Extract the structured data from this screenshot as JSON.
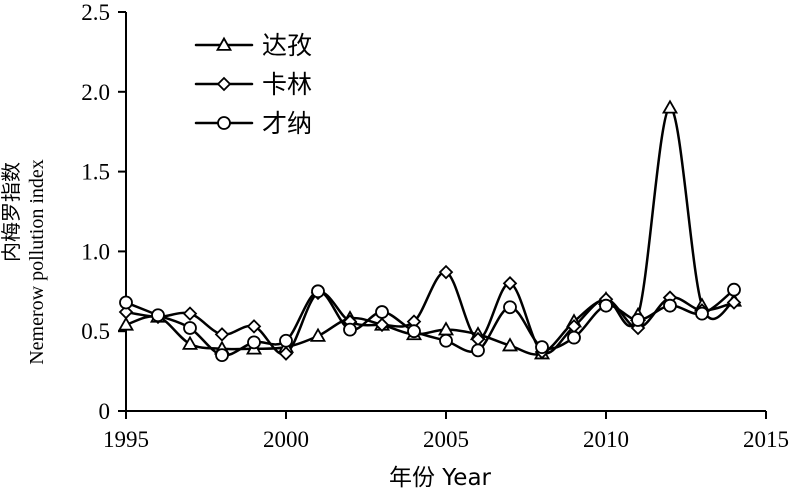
{
  "chart_data": {
    "type": "line",
    "xlabel": "年份 Year",
    "ylabel_lines": [
      "内梅罗指数",
      "Nemerow pollution index"
    ],
    "xlim": [
      1995,
      2015
    ],
    "ylim": [
      0,
      2.5
    ],
    "xticks": [
      1995,
      2000,
      2005,
      2010,
      2015
    ],
    "yticks": [
      "0",
      "0.5",
      "1.0",
      "1.5",
      "2.0",
      "2.5"
    ],
    "grid": false,
    "legend_position": "top-left",
    "x": [
      1995,
      1996,
      1997,
      1998,
      1999,
      2000,
      2001,
      2002,
      2003,
      2004,
      2005,
      2006,
      2007,
      2008,
      2009,
      2010,
      2011,
      2012,
      2013,
      2014
    ],
    "series": [
      {
        "name": "达孜",
        "marker": "triangle",
        "values": [
          0.54,
          0.59,
          0.42,
          0.39,
          0.39,
          0.4,
          0.47,
          0.58,
          0.54,
          0.48,
          0.51,
          0.48,
          0.41,
          0.36,
          0.56,
          0.7,
          0.6,
          1.9,
          0.66,
          0.69
        ]
      },
      {
        "name": "卡林",
        "marker": "diamond",
        "values": [
          0.62,
          0.59,
          0.61,
          0.48,
          0.53,
          0.36,
          0.74,
          0.56,
          0.54,
          0.56,
          0.87,
          0.45,
          0.8,
          0.37,
          0.53,
          0.7,
          0.52,
          0.71,
          0.63,
          0.68
        ]
      },
      {
        "name": "才纳",
        "marker": "circle",
        "values": [
          0.68,
          0.6,
          0.52,
          0.35,
          0.43,
          0.44,
          0.75,
          0.51,
          0.62,
          0.5,
          0.44,
          0.38,
          0.65,
          0.4,
          0.46,
          0.66,
          0.57,
          0.66,
          0.61,
          0.76
        ]
      }
    ]
  }
}
